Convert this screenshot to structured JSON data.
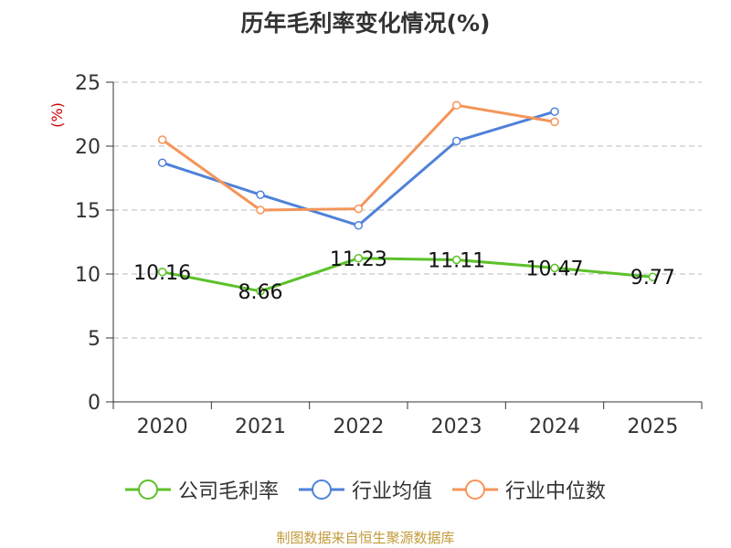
{
  "title": "历年毛利率变化情况(%)",
  "footer": "制图数据来自恒生聚源数据库",
  "chart_data": {
    "type": "line",
    "title": "历年毛利率变化情况(%)",
    "ylabel": "(%)",
    "ylabel_color": "#cc0000",
    "categories": [
      "2020",
      "2021",
      "2022",
      "2023",
      "2024",
      "2025"
    ],
    "ylim": [
      0,
      25
    ],
    "yticks": [
      0,
      5,
      10,
      15,
      20,
      25
    ],
    "grid": true,
    "legend_position": "bottom",
    "series": [
      {
        "name": "公司毛利率",
        "color": "#5cc12a",
        "values": [
          10.16,
          8.66,
          11.23,
          11.11,
          10.47,
          9.77
        ],
        "labels": [
          "10.16",
          "8.66",
          "11.23",
          "11.11",
          "10.47",
          "9.77"
        ]
      },
      {
        "name": "行业均值",
        "color": "#4f81d9",
        "values": [
          18.7,
          16.2,
          13.8,
          20.4,
          22.7,
          null
        ]
      },
      {
        "name": "行业中位数",
        "color": "#f5955a",
        "values": [
          20.5,
          15.0,
          15.1,
          23.2,
          21.9,
          null
        ]
      }
    ]
  }
}
